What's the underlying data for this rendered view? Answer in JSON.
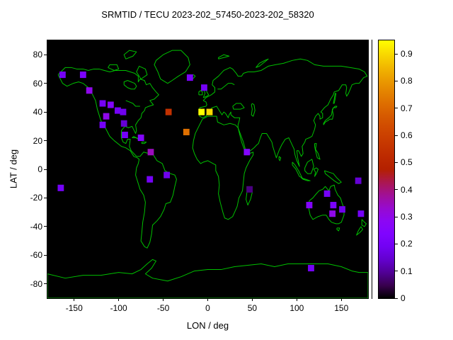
{
  "title": "SRMTID / TECU 2023-202_57450-2023-202_58320",
  "axes": {
    "xlabel": "LON / deg",
    "ylabel": "LAT / deg",
    "x_ticks": [
      -150,
      -100,
      -50,
      0,
      50,
      100,
      150
    ],
    "y_ticks": [
      80,
      60,
      40,
      20,
      0,
      -20,
      -40,
      -60,
      -80
    ],
    "x_range": [
      -180,
      180
    ],
    "y_range": [
      -90,
      90
    ]
  },
  "colorbar": {
    "min": 0,
    "max": 0.95,
    "tick_labels": [
      "0",
      "0.1",
      "0.2",
      "0.3",
      "0.4",
      "0.5",
      "0.6",
      "0.7",
      "0.8",
      "0.9"
    ],
    "position": "right"
  },
  "colors": {
    "page_background": "#ffffff",
    "map_background": "#000000",
    "coastline": "#00c000",
    "frame": "#000000",
    "text": "#000000"
  },
  "chart_data": {
    "type": "heatmap",
    "title": "SRMTID / TECU 2023-202_57450-2023-202_58320",
    "xlabel": "LON / deg",
    "ylabel": "LAT / deg",
    "x_range": [
      -180,
      180
    ],
    "y_range": [
      -90,
      90
    ],
    "grid": false,
    "legend_position": "right-colorbar",
    "colorbar_range": [
      0,
      0.95
    ],
    "palette": "gnuplot-default black-purple-magenta-red-orange-yellow",
    "units": "TECU",
    "cell_size_deg": {
      "lon": 7,
      "lat": 4.5
    },
    "cells": [
      {
        "lon": -163,
        "lat": 66,
        "value": 0.2
      },
      {
        "lon": -140,
        "lat": 66,
        "value": 0.22
      },
      {
        "lon": -133,
        "lat": 55,
        "value": 0.3
      },
      {
        "lon": -118,
        "lat": 46,
        "value": 0.2
      },
      {
        "lon": -109,
        "lat": 45,
        "value": 0.25
      },
      {
        "lon": -101,
        "lat": 41,
        "value": 0.2
      },
      {
        "lon": -114,
        "lat": 37,
        "value": 0.3
      },
      {
        "lon": -118,
        "lat": 31,
        "value": 0.2
      },
      {
        "lon": -95,
        "lat": 40,
        "value": 0.18
      },
      {
        "lon": -94,
        "lat": 32,
        "value": 0.15
      },
      {
        "lon": -93,
        "lat": 24,
        "value": 0.2
      },
      {
        "lon": -75,
        "lat": 22,
        "value": 0.25
      },
      {
        "lon": -64,
        "lat": 12,
        "value": 0.35
      },
      {
        "lon": -44,
        "lat": 40,
        "value": 0.55
      },
      {
        "lon": -24,
        "lat": 26,
        "value": 0.72
      },
      {
        "lon": -7,
        "lat": 40,
        "value": 0.95
      },
      {
        "lon": 2,
        "lat": 40,
        "value": 0.9
      },
      {
        "lon": -4,
        "lat": 57,
        "value": 0.2
      },
      {
        "lon": -20,
        "lat": 64,
        "value": 0.22
      },
      {
        "lon": 44,
        "lat": 12,
        "value": 0.25
      },
      {
        "lon": -65,
        "lat": -7,
        "value": 0.2
      },
      {
        "lon": -46,
        "lat": -4,
        "value": 0.18
      },
      {
        "lon": -165,
        "lat": -13,
        "value": 0.2
      },
      {
        "lon": 47,
        "lat": -14,
        "value": 0.08
      },
      {
        "lon": 114,
        "lat": -25,
        "value": 0.25
      },
      {
        "lon": 134,
        "lat": -17,
        "value": 0.2
      },
      {
        "lon": 141,
        "lat": -25,
        "value": 0.22
      },
      {
        "lon": 140,
        "lat": -31,
        "value": 0.3
      },
      {
        "lon": 151,
        "lat": -28,
        "value": 0.18
      },
      {
        "lon": 169,
        "lat": -8,
        "value": 0.15
      },
      {
        "lon": 172,
        "lat": -31,
        "value": 0.2
      },
      {
        "lon": 116,
        "lat": -69,
        "value": 0.2
      }
    ]
  }
}
